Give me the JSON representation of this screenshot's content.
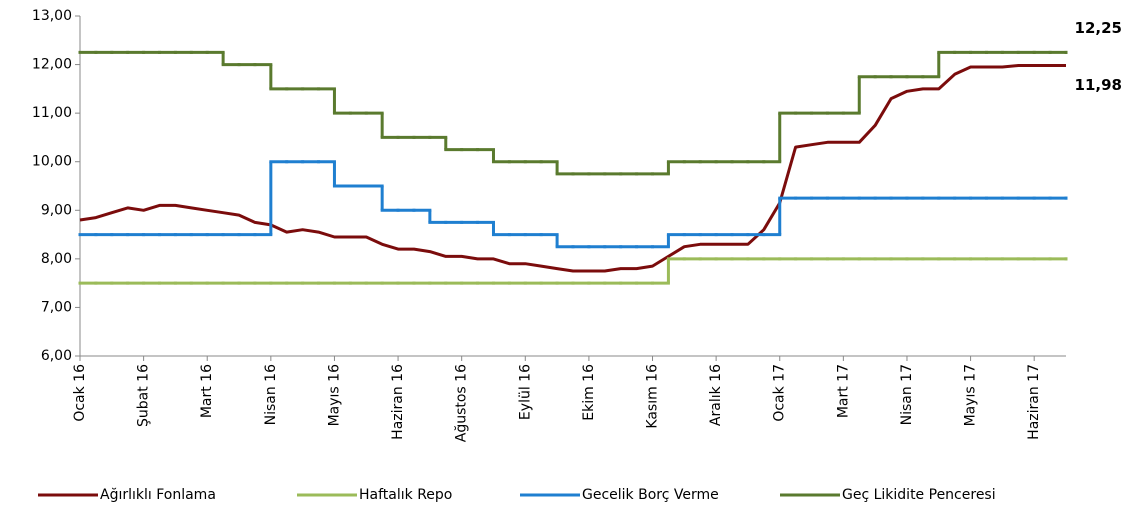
{
  "chart_data": {
    "type": "line",
    "categories": [
      "Ocak 16",
      null,
      null,
      null,
      "Şubat 16",
      null,
      null,
      null,
      "Mart 16",
      null,
      null,
      null,
      "Nisan 16",
      null,
      null,
      null,
      "Mayıs 16",
      null,
      null,
      null,
      "Haziran 16",
      null,
      null,
      null,
      "Ağustos 16",
      null,
      null,
      null,
      "Eylül 16",
      null,
      null,
      null,
      "Ekim 16",
      null,
      null,
      null,
      "Kasım 16",
      null,
      null,
      null,
      "Aralık 16",
      null,
      null,
      null,
      "Ocak 17",
      null,
      null,
      null,
      "Mart 17",
      null,
      null,
      null,
      "Nisan 17",
      null,
      null,
      null,
      "Mayıs 17",
      null,
      null,
      null,
      "Haziran 17",
      null,
      null
    ],
    "ylim": [
      6,
      13
    ],
    "yticks": [
      {
        "value": 6,
        "label": "6,00"
      },
      {
        "value": 7,
        "label": "7,00"
      },
      {
        "value": 8,
        "label": "8,00"
      },
      {
        "value": 9,
        "label": "9,00"
      },
      {
        "value": 10,
        "label": "10,00"
      },
      {
        "value": 11,
        "label": "11,00"
      },
      {
        "value": 12,
        "label": "12,00"
      },
      {
        "value": 13,
        "label": "13,00"
      }
    ],
    "grid": false,
    "legend": "bottom",
    "series": [
      {
        "name": "Ağırlıklı Fonlama",
        "color": "#7b0c0c",
        "step": false,
        "values": [
          8.8,
          8.85,
          8.95,
          9.05,
          9.0,
          9.1,
          9.1,
          9.05,
          9.0,
          8.95,
          8.9,
          8.75,
          8.7,
          8.55,
          8.6,
          8.55,
          8.45,
          8.45,
          8.45,
          8.3,
          8.2,
          8.2,
          8.15,
          8.05,
          8.05,
          8.0,
          8.0,
          7.9,
          7.9,
          7.85,
          7.8,
          7.75,
          7.75,
          7.75,
          7.8,
          7.8,
          7.85,
          8.05,
          8.25,
          8.3,
          8.3,
          8.3,
          8.3,
          8.6,
          9.15,
          10.3,
          10.35,
          10.4,
          10.4,
          10.4,
          10.75,
          11.3,
          11.45,
          11.5,
          11.5,
          11.8,
          11.95,
          11.95,
          11.95,
          11.98,
          11.98,
          11.98,
          11.98
        ]
      },
      {
        "name": "Haftalık Repo",
        "color": "#9bbb59",
        "step": true,
        "values": [
          7.5,
          7.5,
          7.5,
          7.5,
          7.5,
          7.5,
          7.5,
          7.5,
          7.5,
          7.5,
          7.5,
          7.5,
          7.5,
          7.5,
          7.5,
          7.5,
          7.5,
          7.5,
          7.5,
          7.5,
          7.5,
          7.5,
          7.5,
          7.5,
          7.5,
          7.5,
          7.5,
          7.5,
          7.5,
          7.5,
          7.5,
          7.5,
          7.5,
          7.5,
          7.5,
          7.5,
          7.5,
          8.0,
          8.0,
          8.0,
          8.0,
          8.0,
          8.0,
          8.0,
          8.0,
          8.0,
          8.0,
          8.0,
          8.0,
          8.0,
          8.0,
          8.0,
          8.0,
          8.0,
          8.0,
          8.0,
          8.0,
          8.0,
          8.0,
          8.0,
          8.0,
          8.0,
          8.0
        ]
      },
      {
        "name": "Gecelik Borç Verme",
        "color": "#1f7fd0",
        "step": true,
        "values": [
          8.5,
          8.5,
          8.5,
          8.5,
          8.5,
          8.5,
          8.5,
          8.5,
          8.5,
          8.5,
          8.5,
          8.5,
          10.0,
          10.0,
          10.0,
          10.0,
          9.5,
          9.5,
          9.5,
          9.0,
          9.0,
          9.0,
          8.75,
          8.75,
          8.75,
          8.75,
          8.5,
          8.5,
          8.5,
          8.5,
          8.25,
          8.25,
          8.25,
          8.25,
          8.25,
          8.25,
          8.25,
          8.5,
          8.5,
          8.5,
          8.5,
          8.5,
          8.5,
          8.5,
          9.25,
          9.25,
          9.25,
          9.25,
          9.25,
          9.25,
          9.25,
          9.25,
          9.25,
          9.25,
          9.25,
          9.25,
          9.25,
          9.25,
          9.25,
          9.25,
          9.25,
          9.25,
          9.25
        ]
      },
      {
        "name": "Geç Likidite Penceresi",
        "color": "#5a7a2e",
        "step": true,
        "values": [
          12.25,
          12.25,
          12.25,
          12.25,
          12.25,
          12.25,
          12.25,
          12.25,
          12.25,
          12.0,
          12.0,
          12.0,
          11.5,
          11.5,
          11.5,
          11.5,
          11.0,
          11.0,
          11.0,
          10.5,
          10.5,
          10.5,
          10.5,
          10.25,
          10.25,
          10.25,
          10.0,
          10.0,
          10.0,
          10.0,
          9.75,
          9.75,
          9.75,
          9.75,
          9.75,
          9.75,
          9.75,
          10.0,
          10.0,
          10.0,
          10.0,
          10.0,
          10.0,
          10.0,
          11.0,
          11.0,
          11.0,
          11.0,
          11.0,
          11.75,
          11.75,
          11.75,
          11.75,
          11.75,
          12.25,
          12.25,
          12.25,
          12.25,
          12.25,
          12.25,
          12.25,
          12.25,
          12.25
        ]
      }
    ],
    "annotations": [
      {
        "label": "12,25",
        "value": 12.25
      },
      {
        "label": "11,98",
        "value": 11.98
      }
    ]
  }
}
